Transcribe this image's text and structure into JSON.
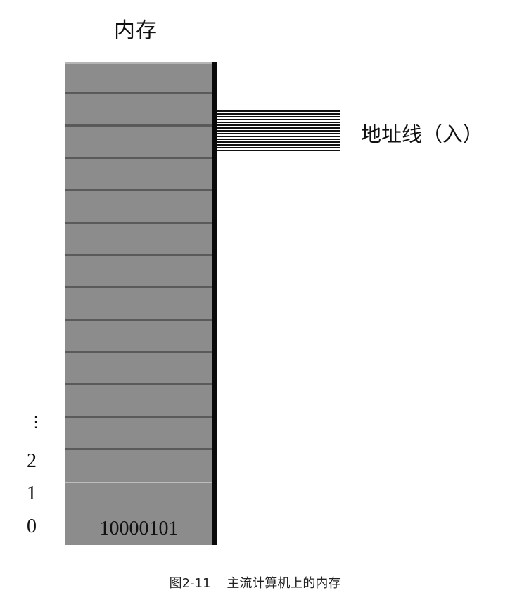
{
  "title": "内存",
  "address_label": "地址线（入）",
  "cell_value": "10000101",
  "row_labels": [
    "0",
    "1",
    "2"
  ],
  "ellipsis": "⋮",
  "caption": "图2-11    主流计算机上的内存"
}
